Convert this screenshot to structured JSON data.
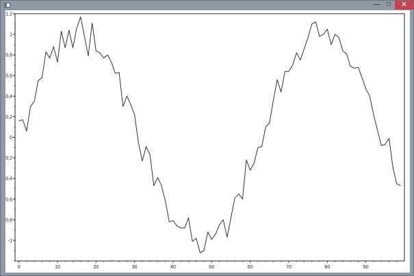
{
  "window": {
    "minimize_glyph": "—",
    "maximize_glyph": "□",
    "close_glyph": "✕",
    "icons": [
      "window-app-icon",
      "minimize-icon",
      "maximize-icon",
      "close-icon"
    ]
  },
  "chart_data": {
    "type": "line",
    "title": "",
    "xlabel": "",
    "ylabel": "",
    "xlim": [
      -1,
      100
    ],
    "ylim": [
      -1.2,
      1.2
    ],
    "grid": false,
    "legend": "none",
    "line_color": "#333333",
    "x_ticks": [
      0,
      10,
      20,
      30,
      40,
      50,
      60,
      70,
      80,
      90
    ],
    "x_tick_labels": [
      "0",
      "10",
      "20",
      "30",
      "40",
      "50",
      "60",
      "70",
      "80",
      "90"
    ],
    "y_ticks": [
      1.2,
      1,
      0.8,
      0.6,
      0.4,
      0.2,
      0,
      -0.2,
      -0.4,
      -0.6,
      -0.8,
      -1
    ],
    "y_tick_labels": [
      "1,2",
      "1",
      "0,8",
      "0,6",
      "0,4",
      "0,2",
      "0",
      "-0,2",
      "-0,4",
      "-0,6",
      "-0,8",
      "-1"
    ],
    "series": [
      {
        "x": [
          0,
          1,
          2,
          3,
          4,
          5,
          6,
          7,
          8,
          9,
          10,
          11,
          12,
          13,
          14,
          15,
          16,
          17,
          18,
          19,
          20,
          21,
          22,
          23,
          24,
          25,
          26,
          27,
          28,
          29,
          30,
          31,
          32,
          33,
          34,
          35,
          36,
          37,
          38,
          39,
          40,
          41,
          42,
          43,
          44,
          45,
          46,
          47,
          48,
          49,
          50,
          51,
          52,
          53,
          54,
          55,
          56,
          57,
          58,
          59,
          60,
          61,
          62,
          63,
          64,
          65,
          66,
          67,
          68,
          69,
          70,
          71,
          72,
          73,
          74,
          75,
          76,
          77,
          78,
          79,
          80,
          81,
          82,
          83,
          84,
          85,
          86,
          87,
          88,
          89,
          90,
          91,
          92,
          93,
          94,
          95,
          96,
          97,
          98,
          99
        ],
        "values": [
          0.16,
          0.17,
          0.06,
          0.3,
          0.35,
          0.55,
          0.58,
          0.83,
          0.77,
          0.88,
          0.73,
          1.03,
          0.87,
          1.04,
          0.87,
          1.06,
          1.17,
          0.98,
          0.79,
          1.11,
          0.84,
          0.82,
          0.77,
          0.8,
          0.73,
          0.62,
          0.63,
          0.3,
          0.4,
          0.32,
          0.22,
          -0.05,
          -0.23,
          -0.09,
          -0.17,
          -0.47,
          -0.39,
          -0.47,
          -0.62,
          -0.82,
          -0.81,
          -0.86,
          -0.88,
          -0.88,
          -0.78,
          -1.01,
          -0.98,
          -1.12,
          -1.1,
          -0.92,
          -0.99,
          -0.94,
          -0.85,
          -0.8,
          -0.97,
          -0.78,
          -0.59,
          -0.55,
          -0.6,
          -0.22,
          -0.32,
          -0.25,
          -0.1,
          -0.09,
          0.1,
          0.14,
          0.36,
          0.56,
          0.44,
          0.64,
          0.64,
          0.7,
          0.82,
          0.75,
          0.86,
          0.97,
          1.1,
          1.12,
          0.98,
          1.0,
          1.05,
          0.9,
          1.0,
          0.97,
          0.84,
          0.81,
          0.69,
          0.67,
          0.68,
          0.58,
          0.47,
          0.4,
          0.22,
          0.07,
          -0.08,
          -0.07,
          -0.01,
          -0.29,
          -0.45,
          -0.47
        ]
      }
    ]
  }
}
